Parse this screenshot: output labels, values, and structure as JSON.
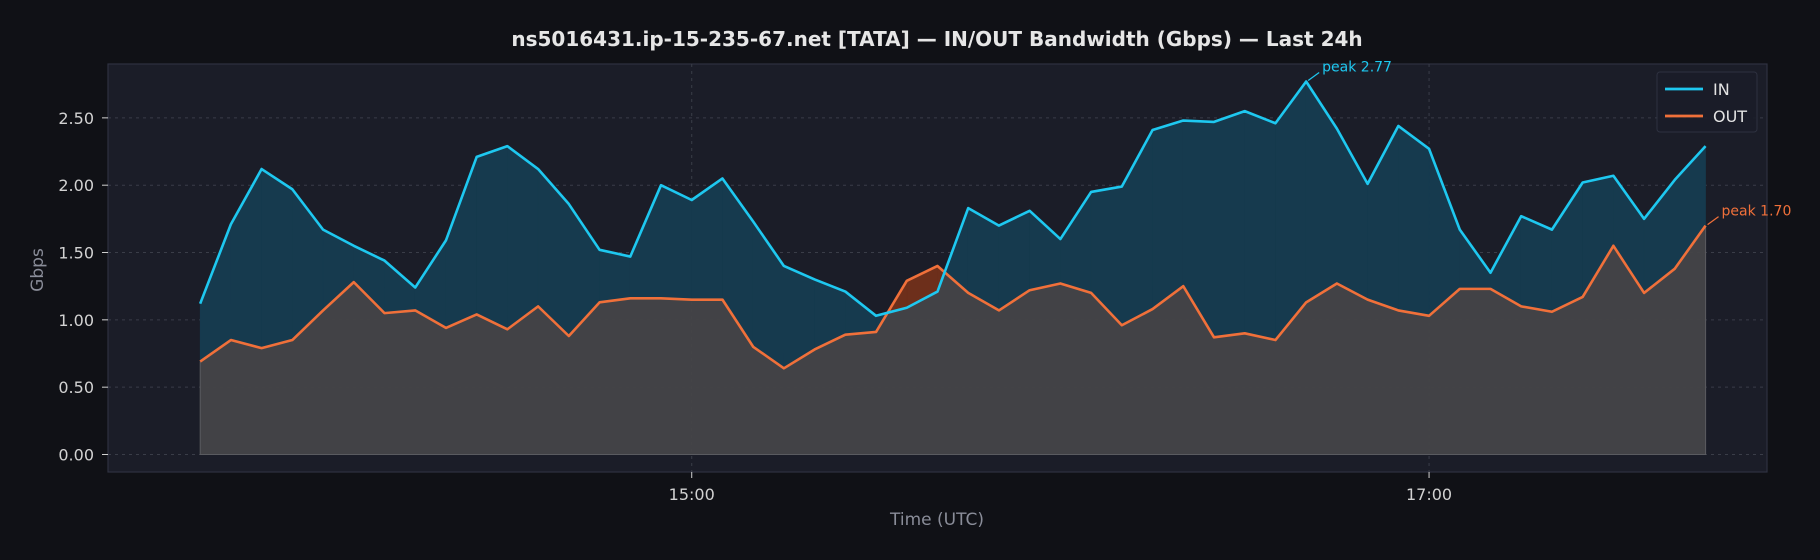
{
  "chart_data": {
    "type": "area",
    "title": "ns5016431.ip-15-235-67.net [TATA] — IN/OUT Bandwidth (Gbps) — Last 24h",
    "xlabel": "Time (UTC)",
    "ylabel": "Gbps",
    "ylim": [
      -0.13,
      2.9
    ],
    "yticks": [
      0,
      0.5,
      1.0,
      1.5,
      2.0,
      2.5
    ],
    "ytick_labels": [
      "0.00",
      "0.50",
      "1.00",
      "1.50",
      "2.00",
      "2.50"
    ],
    "x_unit": "minutes (UTC clock time)",
    "xlim": [
      805,
      1075
    ],
    "x_start": 820,
    "x_step": 5,
    "xticks": [
      900,
      1020
    ],
    "xtick_labels": [
      "15:00",
      "17:00"
    ],
    "grid": true,
    "legend": "top-right",
    "series": [
      {
        "name": "IN",
        "color": "#1ec8f0",
        "values": [
          1.12,
          1.71,
          2.12,
          1.97,
          1.67,
          1.55,
          1.44,
          1.24,
          1.59,
          2.21,
          2.29,
          2.12,
          1.86,
          1.52,
          1.47,
          2.0,
          1.89,
          2.05,
          1.73,
          1.4,
          1.3,
          1.21,
          1.03,
          1.09,
          1.21,
          1.83,
          1.7,
          1.81,
          1.6,
          1.95,
          1.99,
          2.41,
          2.48,
          2.47,
          2.55,
          2.46,
          2.77,
          2.42,
          2.01,
          2.44,
          2.27,
          1.67,
          1.35,
          1.77,
          1.67,
          2.02,
          2.07,
          1.75,
          2.04,
          2.29
        ]
      },
      {
        "name": "OUT",
        "color": "#f0703a",
        "values": [
          0.69,
          0.85,
          0.79,
          0.85,
          1.07,
          1.28,
          1.05,
          1.07,
          0.94,
          1.04,
          0.93,
          1.1,
          0.88,
          1.13,
          1.16,
          1.16,
          1.15,
          1.15,
          0.8,
          0.64,
          0.78,
          0.89,
          0.91,
          1.29,
          1.4,
          1.2,
          1.07,
          1.22,
          1.27,
          1.2,
          0.96,
          1.08,
          1.25,
          0.87,
          0.9,
          0.85,
          1.13,
          1.27,
          1.15,
          1.07,
          1.03,
          1.23,
          1.23,
          1.1,
          1.06,
          1.17,
          1.55,
          1.2,
          1.38,
          1.7
        ]
      }
    ],
    "annotations": [
      {
        "text": "peak 2.77",
        "series": "IN",
        "index": 36,
        "value": 2.77
      },
      {
        "text": "peak 1.70",
        "series": "OUT",
        "index": 49,
        "value": 1.7
      }
    ],
    "colors": {
      "background": "#101116",
      "plot_background": "#1b1d28",
      "out_fill": "#444548",
      "in_fill": "#163a4e",
      "in_below_out_fill": "#6d2f1b"
    }
  }
}
